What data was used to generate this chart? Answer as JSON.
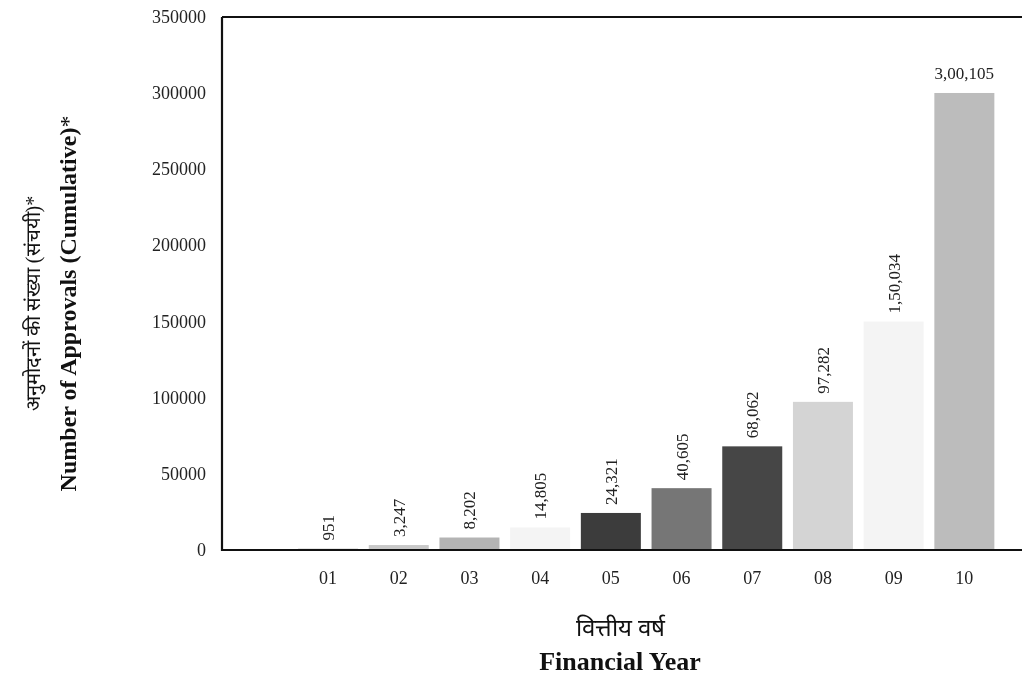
{
  "chart_data": {
    "type": "bar",
    "xlabel": "वित्तीय वर्ष\n**Financial Year**",
    "ylabel": "अनुमोदनों की संख्या (संचयी)*\n**Number of Approvals (Cumulative)***",
    "categories": [
      "01",
      "02",
      "03",
      "04",
      "05",
      "06",
      "07",
      "08",
      "09",
      "10"
    ],
    "values": [
      951,
      3247,
      8202,
      14805,
      24321,
      40605,
      68062,
      97282,
      150034,
      300105
    ],
    "value_labels": [
      "951",
      "3,247",
      "8,202",
      "14,805",
      "24,321",
      "40,605",
      "68,062",
      "97,282",
      "1,50,034",
      "3,00,105"
    ],
    "colors": [
      "#c8c8c8",
      "#c8c8c8",
      "#b4b4b4",
      "#f4f4f4",
      "#3c3c3c",
      "#767676",
      "#464646",
      "#d4d4d4",
      "#f4f4f4",
      "#bcbcbc"
    ],
    "ylim": [
      0,
      350000
    ],
    "yticks": [
      0,
      50000,
      100000,
      150000,
      200000,
      250000,
      300000,
      350000
    ],
    "grid": false
  }
}
